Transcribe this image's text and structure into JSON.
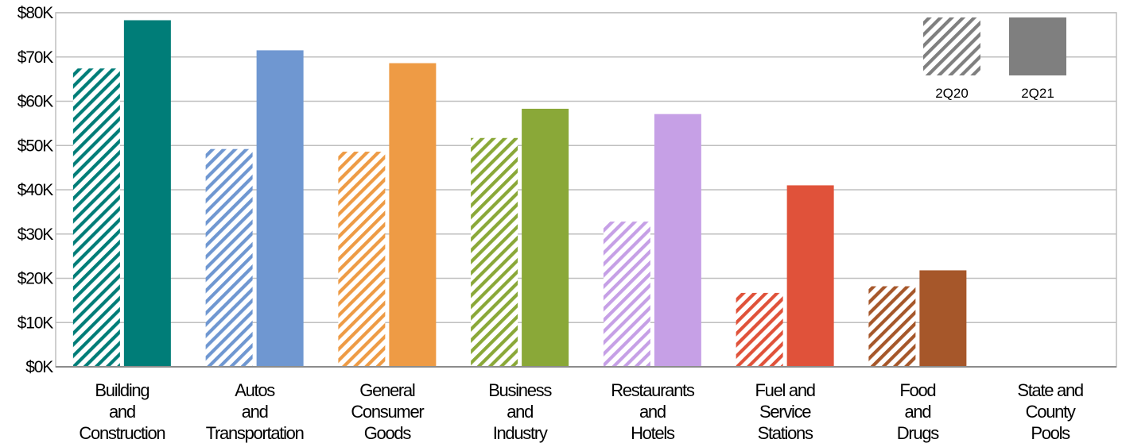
{
  "chart_data": {
    "type": "bar",
    "title": "",
    "xlabel": "",
    "ylabel": "",
    "ylim": [
      0,
      80000
    ],
    "y_ticks": [
      "$0K",
      "$10K",
      "$20K",
      "$30K",
      "$40K",
      "$50K",
      "$60K",
      "$70K",
      "$80K"
    ],
    "y_tick_values": [
      0,
      10000,
      20000,
      30000,
      40000,
      50000,
      60000,
      70000,
      80000
    ],
    "grid": true,
    "legend_position": "top-right",
    "categories": [
      [
        "Building",
        "and",
        "Construction"
      ],
      [
        "Autos",
        "and",
        "Transportation"
      ],
      [
        "General",
        "Consumer",
        "Goods"
      ],
      [
        "Business",
        "and",
        "Industry"
      ],
      [
        "Restaurants",
        "and",
        "Hotels"
      ],
      [
        "Fuel and",
        "Service",
        "Stations"
      ],
      [
        "Food",
        "and",
        "Drugs"
      ],
      [
        "State and",
        "County",
        "Pools"
      ]
    ],
    "category_colors": [
      "#007d78",
      "#6f97d1",
      "#ee9b45",
      "#8aa838",
      "#c6a0e6",
      "#e0523a",
      "#a6572a",
      "#7f7f7f"
    ],
    "series": [
      {
        "name": "2Q20",
        "pattern": "hatched",
        "values": [
          67400,
          49200,
          48600,
          51700,
          32800,
          16700,
          18200,
          0
        ]
      },
      {
        "name": "2Q21",
        "pattern": "solid",
        "values": [
          78300,
          71500,
          68600,
          58300,
          57100,
          41000,
          21800,
          0
        ]
      }
    ],
    "legend": [
      {
        "label": "2Q20",
        "pattern": "hatched",
        "color": "#7f7f7f"
      },
      {
        "label": "2Q21",
        "pattern": "solid",
        "color": "#7f7f7f"
      }
    ]
  }
}
